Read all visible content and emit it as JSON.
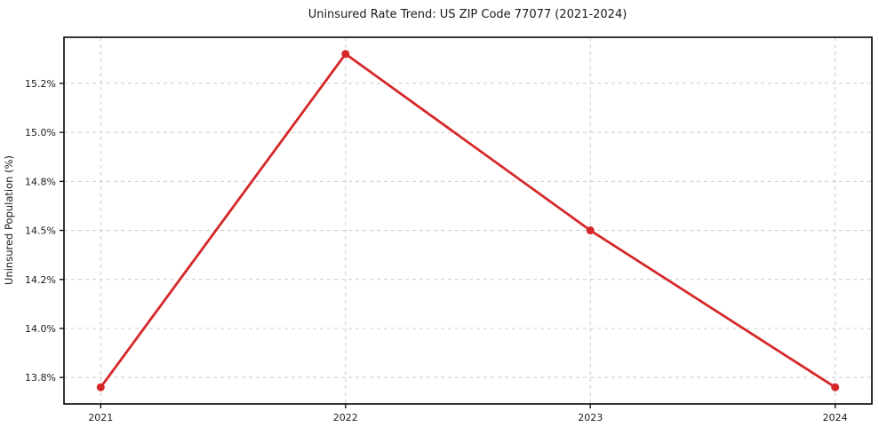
{
  "figure": {
    "background_color": "#ffffff",
    "spine_color": "#111111",
    "text_color": "#1a1a1a"
  },
  "chart_data": {
    "type": "line",
    "title": "Uninsured Rate Trend: US ZIP Code 77077 (2021-2024)",
    "xlabel": "",
    "ylabel": "Uninsured Population (%)",
    "x": [
      2021,
      2022,
      2023,
      2024
    ],
    "values": [
      13.7,
      15.4,
      14.5,
      13.7
    ],
    "line_color": "#d62728",
    "marker": "circle",
    "marker_radius": 4.5,
    "line_width": 2.8,
    "x_ticks": {
      "values": [
        2021,
        2022,
        2023,
        2024
      ],
      "labels": [
        "2021",
        "2022",
        "2023",
        "2024"
      ]
    },
    "y_ticks": {
      "values": [
        13.75,
        14.0,
        14.25,
        14.5,
        14.75,
        15.0,
        15.25
      ],
      "labels": [
        "13.8%",
        "14.0%",
        "14.2%",
        "14.5%",
        "14.8%",
        "15.0%",
        "15.2%"
      ]
    },
    "xlim": [
      2020.85,
      2024.15
    ],
    "ylim": [
      13.615,
      15.485
    ],
    "grid": true,
    "grid_style": "dashed",
    "grid_color": "#cccccc",
    "legend_position": "none"
  }
}
